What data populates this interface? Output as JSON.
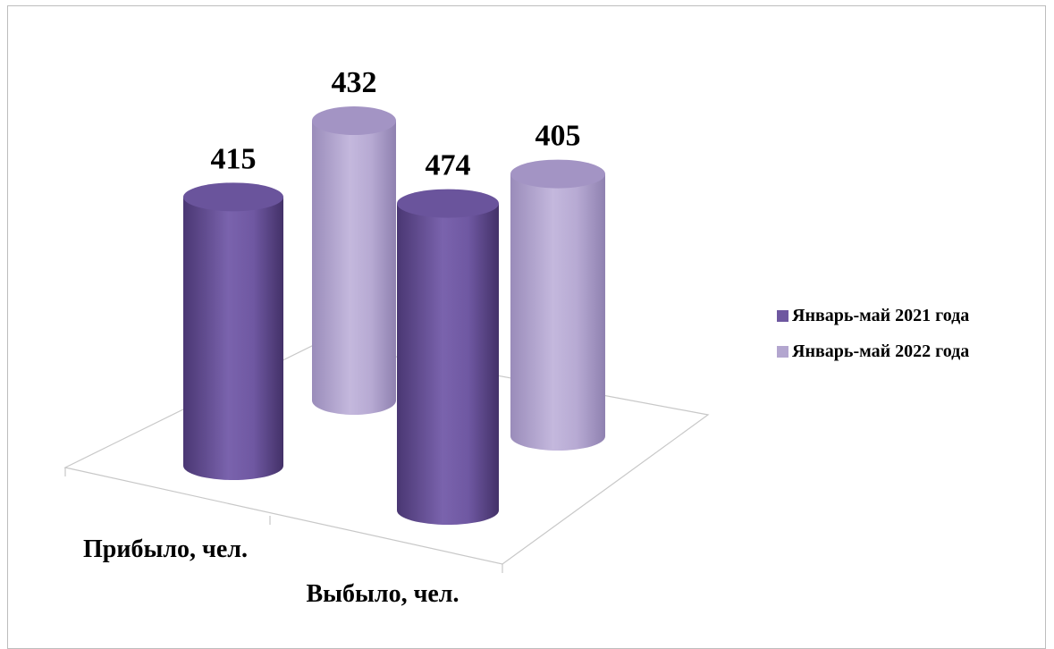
{
  "chart_data": {
    "type": "bar",
    "style": "3d-cylinder",
    "categories": [
      "Прибыло, чел.",
      "Выбыло, чел."
    ],
    "series": [
      {
        "name": "Январь-май 2021 года",
        "values": [
          415,
          474
        ],
        "color": "#6e57a0"
      },
      {
        "name": "Январь-май 2022 года",
        "values": [
          432,
          405
        ],
        "color": "#b3a6cf"
      }
    ],
    "legend_position": "right",
    "grid": false
  }
}
